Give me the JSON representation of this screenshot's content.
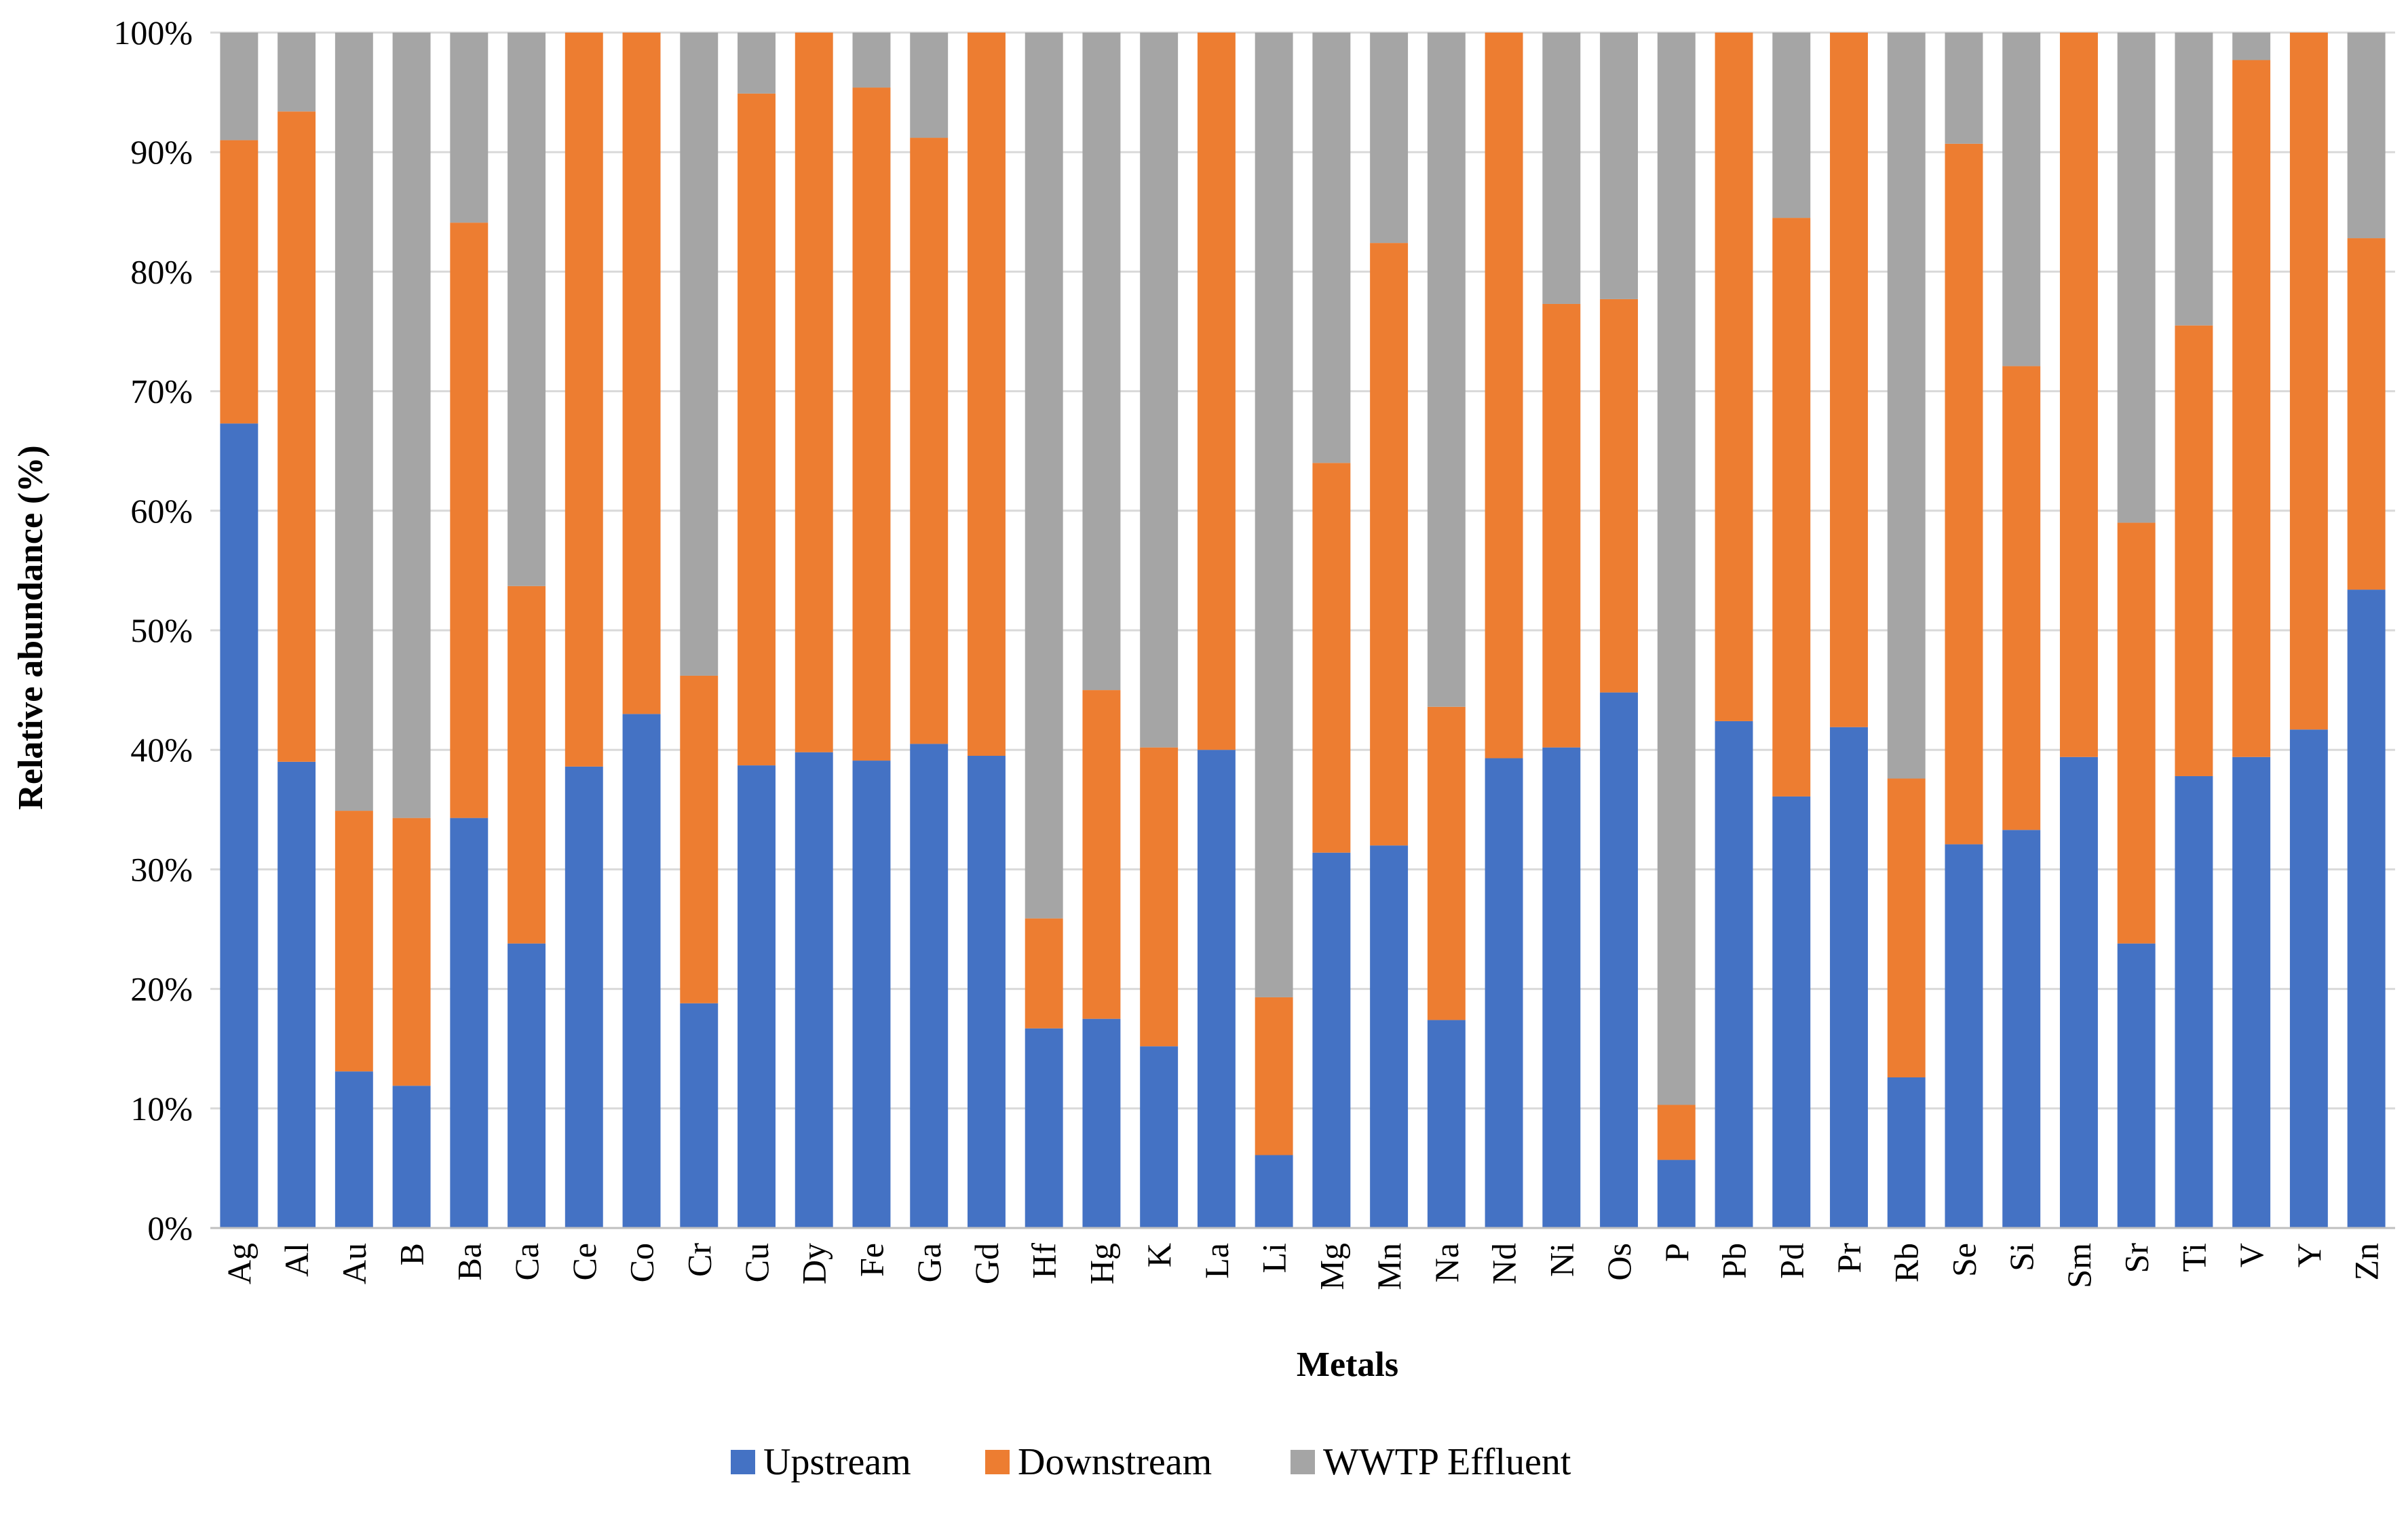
{
  "chart_data": {
    "type": "bar",
    "stacked": "percent",
    "title": "",
    "xlabel": "Metals",
    "ylabel": "Relative abundance (%)",
    "ylim": [
      0,
      100
    ],
    "yticks": [
      0,
      10,
      20,
      30,
      40,
      50,
      60,
      70,
      80,
      90,
      100
    ],
    "ytick_labels": [
      "0%",
      "10%",
      "20%",
      "30%",
      "40%",
      "50%",
      "60%",
      "70%",
      "80%",
      "90%",
      "100%"
    ],
    "grid": true,
    "legend_position": "bottom-center",
    "categories": [
      "Ag",
      "Al",
      "Au",
      "B",
      "Ba",
      "Ca",
      "Ce",
      "Co",
      "Cr",
      "Cu",
      "Dy",
      "Fe",
      "Ga",
      "Gd",
      "Hf",
      "Hg",
      "K",
      "La",
      "Li",
      "Mg",
      "Mn",
      "Na",
      "Nd",
      "Ni",
      "Os",
      "P",
      "Pb",
      "Pd",
      "Pr",
      "Rb",
      "Se",
      "Si",
      "Sm",
      "Sr",
      "Ti",
      "V",
      "Y",
      "Zn"
    ],
    "series": [
      {
        "name": "Upstream",
        "color": "#4472C4",
        "values": [
          67.3,
          39.0,
          13.1,
          11.9,
          34.3,
          23.8,
          38.6,
          43.0,
          18.8,
          38.7,
          39.8,
          39.1,
          40.5,
          39.5,
          16.7,
          17.5,
          15.2,
          40.0,
          6.1,
          31.4,
          32.0,
          17.4,
          39.3,
          40.2,
          44.8,
          5.7,
          42.4,
          36.1,
          41.9,
          12.6,
          32.1,
          33.3,
          39.4,
          23.8,
          37.8,
          39.4,
          41.7,
          53.4
        ]
      },
      {
        "name": "Downstream",
        "color": "#ED7D31",
        "values": [
          23.7,
          54.4,
          21.8,
          22.4,
          49.8,
          29.9,
          61.4,
          57.0,
          27.4,
          56.2,
          60.2,
          56.3,
          50.7,
          60.5,
          9.2,
          27.5,
          25.0,
          60.0,
          13.2,
          32.6,
          50.4,
          26.2,
          60.7,
          37.1,
          32.9,
          4.6,
          57.6,
          48.4,
          58.1,
          25.0,
          58.6,
          38.8,
          60.6,
          35.2,
          37.7,
          58.3,
          58.3,
          29.4
        ]
      },
      {
        "name": "WWTP Effluent",
        "color": "#A5A5A5",
        "values": [
          9.0,
          6.6,
          65.1,
          65.7,
          15.9,
          46.3,
          0.0,
          0.0,
          53.8,
          5.1,
          0.0,
          4.6,
          8.8,
          0.0,
          74.1,
          55.0,
          59.8,
          0.0,
          80.7,
          36.0,
          17.6,
          56.4,
          0.0,
          22.7,
          22.3,
          89.7,
          0.0,
          15.5,
          0.0,
          62.4,
          9.3,
          27.9,
          0.0,
          41.0,
          24.5,
          2.3,
          0.0,
          17.2
        ]
      }
    ]
  }
}
